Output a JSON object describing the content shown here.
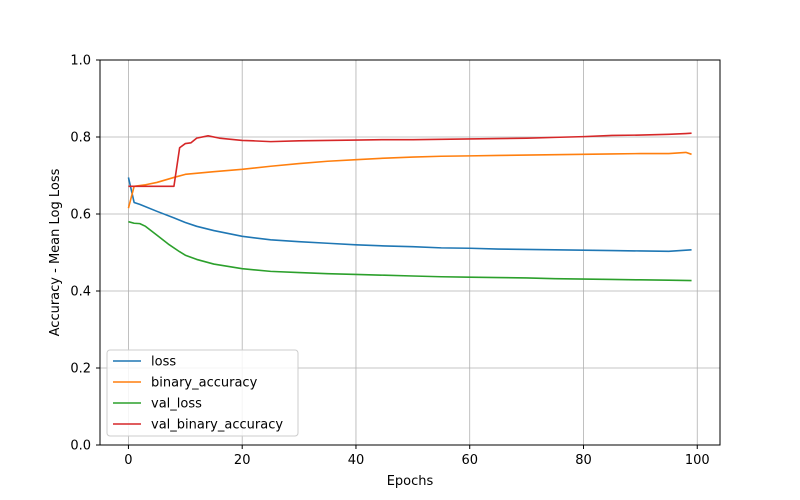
{
  "chart_data": {
    "type": "line",
    "xlabel": "Epochs",
    "ylabel": "Accuracy - Mean Log Loss",
    "xlim": [
      -5,
      104
    ],
    "ylim": [
      0,
      1
    ],
    "xticks": [
      0,
      20,
      40,
      60,
      80,
      100
    ],
    "yticks": [
      0.0,
      0.2,
      0.4,
      0.6,
      0.8,
      1.0
    ],
    "xtick_labels": [
      "0",
      "20",
      "40",
      "60",
      "80",
      "100"
    ],
    "ytick_labels": [
      "0.0",
      "0.2",
      "0.4",
      "0.6",
      "0.8",
      "1.0"
    ],
    "grid": true,
    "legend_position": "lower-left",
    "series": [
      {
        "name": "loss",
        "color": "#1f77b4",
        "x": [
          0,
          1,
          2,
          5,
          8,
          10,
          12,
          15,
          20,
          25,
          30,
          35,
          40,
          45,
          50,
          55,
          60,
          65,
          70,
          75,
          80,
          85,
          90,
          95,
          99
        ],
        "values": [
          0.695,
          0.63,
          0.625,
          0.607,
          0.59,
          0.578,
          0.568,
          0.557,
          0.542,
          0.533,
          0.528,
          0.524,
          0.52,
          0.517,
          0.515,
          0.512,
          0.511,
          0.509,
          0.508,
          0.507,
          0.506,
          0.505,
          0.504,
          0.503,
          0.507
        ]
      },
      {
        "name": "binary_accuracy",
        "color": "#ff7f0e",
        "x": [
          0,
          1,
          3,
          5,
          8,
          10,
          15,
          20,
          25,
          30,
          35,
          40,
          45,
          50,
          55,
          60,
          65,
          70,
          75,
          80,
          85,
          90,
          95,
          98,
          99
        ],
        "values": [
          0.615,
          0.672,
          0.676,
          0.682,
          0.695,
          0.703,
          0.71,
          0.716,
          0.724,
          0.731,
          0.737,
          0.741,
          0.745,
          0.748,
          0.75,
          0.751,
          0.752,
          0.753,
          0.754,
          0.755,
          0.756,
          0.757,
          0.757,
          0.76,
          0.755
        ]
      },
      {
        "name": "val_loss",
        "color": "#2ca02c",
        "x": [
          0,
          1,
          2,
          3,
          5,
          7,
          9,
          10,
          12,
          15,
          20,
          25,
          30,
          35,
          40,
          45,
          50,
          55,
          60,
          65,
          70,
          75,
          80,
          85,
          90,
          95,
          99
        ],
        "values": [
          0.58,
          0.576,
          0.575,
          0.568,
          0.545,
          0.522,
          0.502,
          0.493,
          0.482,
          0.47,
          0.458,
          0.451,
          0.448,
          0.445,
          0.443,
          0.441,
          0.439,
          0.437,
          0.436,
          0.435,
          0.434,
          0.432,
          0.431,
          0.43,
          0.429,
          0.428,
          0.427
        ]
      },
      {
        "name": "val_binary_accuracy",
        "color": "#d62728",
        "x": [
          0,
          2,
          4,
          6,
          7,
          8,
          9,
          10,
          11,
          12,
          14,
          16,
          18,
          20,
          22,
          25,
          30,
          35,
          40,
          45,
          50,
          55,
          60,
          65,
          70,
          75,
          80,
          85,
          90,
          95,
          98,
          99
        ],
        "values": [
          0.672,
          0.672,
          0.672,
          0.672,
          0.672,
          0.672,
          0.772,
          0.783,
          0.785,
          0.797,
          0.803,
          0.797,
          0.794,
          0.791,
          0.79,
          0.788,
          0.79,
          0.791,
          0.792,
          0.793,
          0.793,
          0.794,
          0.795,
          0.796,
          0.797,
          0.799,
          0.801,
          0.804,
          0.805,
          0.807,
          0.809,
          0.81
        ]
      }
    ]
  }
}
